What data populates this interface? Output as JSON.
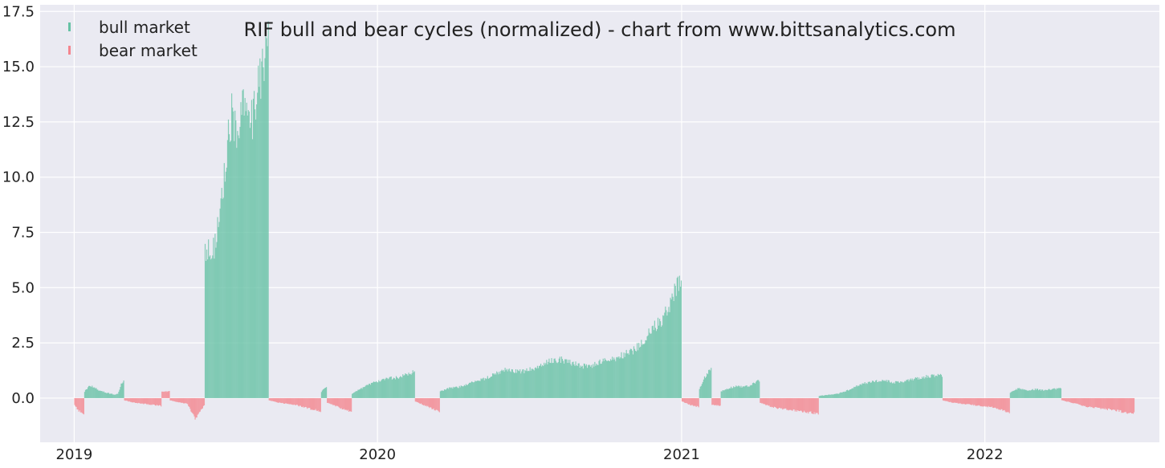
{
  "chart_data": {
    "type": "bar",
    "title": "RIF bull and bear cycles (normalized)  - chart from www.bittsanalytics.com",
    "xlabel": "",
    "ylabel": "",
    "x_range": [
      "2018-11-21",
      "2022-07-30"
    ],
    "ylim": [
      -2.0,
      17.8
    ],
    "grid": true,
    "legend_position": "top-left",
    "x_tick_labels": [
      "2019",
      "2020",
      "2021",
      "2022"
    ],
    "x_tick_dates": [
      "2019-01-01",
      "2020-01-01",
      "2021-01-01",
      "2022-01-01"
    ],
    "y_ticks": [
      0.0,
      2.5,
      5.0,
      7.5,
      10.0,
      12.5,
      15.0,
      17.5
    ],
    "y_tick_labels": [
      "0.0",
      "2.5",
      "5.0",
      "7.5",
      "10.0",
      "12.5",
      "15.0",
      "17.5"
    ],
    "series": [
      {
        "name": "bull market",
        "color": "#66c2a5",
        "segments": [
          {
            "start": "2019-01-13",
            "end": "2019-02-08",
            "values": [
              0.3,
              0.5,
              0.55,
              0.45,
              0.35,
              0.3,
              0.25
            ]
          },
          {
            "start": "2019-02-09",
            "end": "2019-03-01",
            "values": [
              0.25,
              0.2,
              0.18,
              0.15,
              0.2,
              0.6,
              0.75
            ]
          },
          {
            "start": "2019-06-07",
            "end": "2019-08-22",
            "values": [
              6.5,
              6.8,
              6.6,
              7.5,
              9.0,
              10.0,
              12.0,
              13.0,
              11.5,
              12.5,
              13.2,
              12.0,
              12.5,
              14.0,
              14.7,
              15.0,
              16.2
            ]
          },
          {
            "start": "2019-10-25",
            "end": "2019-10-31",
            "values": [
              0.3,
              0.5
            ]
          },
          {
            "start": "2019-12-01",
            "end": "2020-02-14",
            "values": [
              0.2,
              0.4,
              0.6,
              0.75,
              0.85,
              0.9,
              0.95,
              1.1,
              1.2
            ]
          },
          {
            "start": "2020-03-16",
            "end": "2020-12-31",
            "values": [
              0.3,
              0.45,
              0.5,
              0.65,
              0.8,
              0.9,
              1.1,
              1.3,
              1.25,
              1.2,
              1.35,
              1.5,
              1.7,
              1.75,
              1.6,
              1.5,
              1.4,
              1.6,
              1.7,
              1.8,
              2.0,
              2.2,
              2.6,
              3.2,
              3.6,
              4.5,
              5.4
            ]
          },
          {
            "start": "2021-01-22",
            "end": "2021-02-05",
            "values": [
              0.4,
              1.0,
              1.3
            ]
          },
          {
            "start": "2021-02-17",
            "end": "2021-04-04",
            "values": [
              0.3,
              0.45,
              0.55,
              0.5,
              0.6,
              0.8
            ]
          },
          {
            "start": "2021-06-15",
            "end": "2021-11-10",
            "values": [
              0.1,
              0.15,
              0.2,
              0.35,
              0.55,
              0.7,
              0.75,
              0.8,
              0.7,
              0.75,
              0.85,
              0.95,
              1.0,
              1.05
            ]
          },
          {
            "start": "2022-01-31",
            "end": "2022-04-02",
            "values": [
              0.25,
              0.45,
              0.35,
              0.4,
              0.35,
              0.4,
              0.45
            ]
          }
        ]
      },
      {
        "name": "bear market",
        "color": "#f4858e",
        "segments": [
          {
            "start": "2019-01-01",
            "end": "2019-01-12",
            "values": [
              -0.3,
              -0.55,
              -0.6,
              -0.7
            ]
          },
          {
            "start": "2019-03-02",
            "end": "2019-04-15",
            "values": [
              -0.1,
              -0.2,
              -0.25,
              -0.3,
              -0.35
            ]
          },
          {
            "start": "2019-04-16",
            "end": "2019-04-25",
            "values": [
              0.3,
              0.3
            ]
          },
          {
            "start": "2019-04-26",
            "end": "2019-06-06",
            "values": [
              -0.1,
              -0.2,
              -0.25,
              -0.95,
              -0.3
            ]
          },
          {
            "start": "2019-08-23",
            "end": "2019-10-24",
            "values": [
              -0.1,
              -0.2,
              -0.25,
              -0.3,
              -0.4,
              -0.5,
              -0.6
            ]
          },
          {
            "start": "2019-11-01",
            "end": "2019-11-30",
            "values": [
              -0.2,
              -0.35,
              -0.5,
              -0.6
            ]
          },
          {
            "start": "2020-02-15",
            "end": "2020-03-15",
            "values": [
              -0.15,
              -0.3,
              -0.45,
              -0.65
            ]
          },
          {
            "start": "2021-01-01",
            "end": "2021-01-21",
            "values": [
              -0.15,
              -0.3,
              -0.4
            ]
          },
          {
            "start": "2021-02-06",
            "end": "2021-02-16",
            "values": [
              -0.3,
              -0.35
            ]
          },
          {
            "start": "2021-04-05",
            "end": "2021-06-14",
            "values": [
              -0.2,
              -0.35,
              -0.45,
              -0.5,
              -0.55,
              -0.6,
              -0.65,
              -0.7
            ]
          },
          {
            "start": "2021-11-11",
            "end": "2022-01-30",
            "values": [
              -0.1,
              -0.2,
              -0.25,
              -0.3,
              -0.35,
              -0.4,
              -0.5,
              -0.65
            ]
          },
          {
            "start": "2022-04-03",
            "end": "2022-06-29",
            "values": [
              -0.1,
              -0.2,
              -0.3,
              -0.4,
              -0.45,
              -0.5,
              -0.55,
              -0.65,
              -0.7
            ]
          }
        ]
      }
    ]
  }
}
